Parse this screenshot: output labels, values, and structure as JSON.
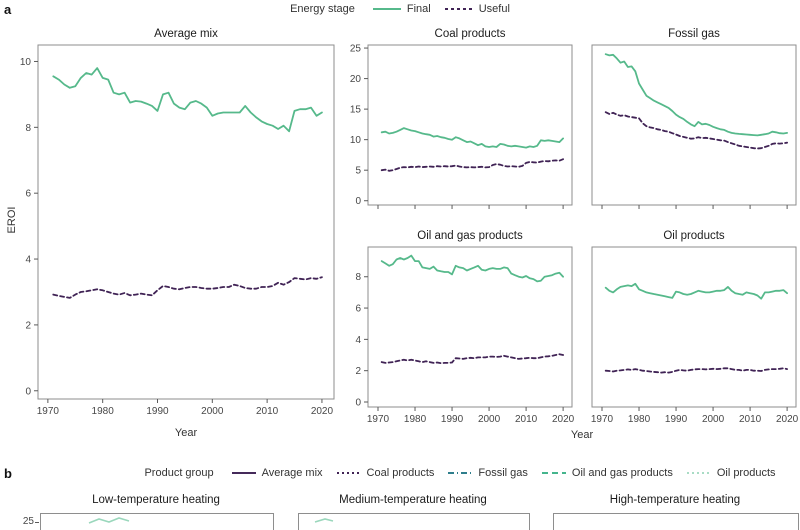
{
  "panel_a_label": "a",
  "panel_b_label": "b",
  "legend_energy_stage": {
    "title": "Energy stage",
    "items": [
      {
        "label": "Final",
        "color": "#56b98b",
        "dash": ""
      },
      {
        "label": "Useful",
        "color": "#402355",
        "dash": "3 3"
      }
    ]
  },
  "axes": {
    "x_label": "Year",
    "y_label": "EROI"
  },
  "years": [
    1971,
    1972,
    1973,
    1974,
    1975,
    1976,
    1977,
    1978,
    1979,
    1980,
    1981,
    1982,
    1983,
    1984,
    1985,
    1986,
    1987,
    1988,
    1989,
    1990,
    1991,
    1992,
    1993,
    1994,
    1995,
    1996,
    1997,
    1998,
    1999,
    2000,
    2001,
    2002,
    2003,
    2004,
    2005,
    2006,
    2007,
    2008,
    2009,
    2010,
    2011,
    2012,
    2013,
    2014,
    2015,
    2016,
    2017,
    2018,
    2019,
    2020
  ],
  "chart_data": [
    {
      "type": "line",
      "title": "Average mix",
      "xlim": [
        1968.2,
        2022.2
      ],
      "ylim": [
        -0.25,
        10.5
      ],
      "xticks": [
        1970,
        1980,
        1990,
        2000,
        2010,
        2020
      ],
      "yticks": [
        0,
        2,
        4,
        6,
        8,
        10
      ],
      "show_x_labels": true,
      "show_y_ticks": true,
      "series": [
        {
          "name": "Final",
          "color": "#56b98b",
          "dash": "",
          "values": [
            9.55,
            9.45,
            9.3,
            9.2,
            9.25,
            9.5,
            9.65,
            9.6,
            9.8,
            9.5,
            9.45,
            9.05,
            9.0,
            9.05,
            8.75,
            8.8,
            8.78,
            8.72,
            8.65,
            8.5,
            9.0,
            9.05,
            8.72,
            8.6,
            8.55,
            8.75,
            8.8,
            8.72,
            8.6,
            8.35,
            8.42,
            8.45,
            8.45,
            8.45,
            8.45,
            8.65,
            8.45,
            8.3,
            8.18,
            8.1,
            8.05,
            7.95,
            8.05,
            7.88,
            8.5,
            8.55,
            8.55,
            8.6,
            8.35,
            8.45
          ]
        },
        {
          "name": "Useful",
          "color": "#402355",
          "dash": "4 3",
          "values": [
            2.92,
            2.88,
            2.85,
            2.82,
            2.92,
            3.0,
            3.02,
            3.05,
            3.08,
            3.05,
            3.0,
            2.95,
            2.92,
            2.97,
            2.9,
            2.92,
            2.95,
            2.92,
            2.9,
            3.05,
            3.18,
            3.15,
            3.1,
            3.08,
            3.12,
            3.15,
            3.15,
            3.12,
            3.1,
            3.1,
            3.12,
            3.15,
            3.15,
            3.22,
            3.18,
            3.12,
            3.1,
            3.1,
            3.15,
            3.15,
            3.18,
            3.28,
            3.22,
            3.3,
            3.42,
            3.4,
            3.38,
            3.42,
            3.4,
            3.45
          ]
        }
      ]
    },
    {
      "type": "line",
      "title": "Coal products",
      "xlim": [
        1967.3,
        2022.4
      ],
      "ylim": [
        -0.7,
        25.5
      ],
      "xticks": [
        1970,
        1980,
        1990,
        2000,
        2010,
        2020
      ],
      "yticks": [
        0,
        5,
        10,
        15,
        20,
        25
      ],
      "show_x_labels": false,
      "show_y_ticks": true,
      "series": [
        {
          "name": "Final",
          "color": "#56b98b",
          "dash": "",
          "values": [
            11.2,
            11.3,
            11.0,
            11.1,
            11.3,
            11.6,
            11.9,
            11.7,
            11.5,
            11.4,
            11.2,
            11.0,
            10.9,
            10.8,
            10.5,
            10.6,
            10.4,
            10.3,
            10.1,
            10.0,
            10.4,
            10.2,
            9.9,
            9.6,
            9.7,
            9.4,
            9.1,
            9.3,
            8.9,
            8.8,
            8.9,
            8.8,
            9.3,
            9.2,
            9.0,
            8.9,
            9.0,
            8.9,
            8.8,
            8.7,
            8.9,
            8.8,
            9.0,
            9.9,
            9.8,
            9.9,
            9.8,
            9.7,
            9.6,
            10.2
          ]
        },
        {
          "name": "Useful",
          "color": "#402355",
          "dash": "4 3",
          "values": [
            5.0,
            5.1,
            4.9,
            5.0,
            5.2,
            5.4,
            5.5,
            5.45,
            5.55,
            5.5,
            5.6,
            5.5,
            5.55,
            5.6,
            5.55,
            5.65,
            5.6,
            5.65,
            5.6,
            5.65,
            5.75,
            5.6,
            5.5,
            5.45,
            5.5,
            5.45,
            5.5,
            5.55,
            5.45,
            5.5,
            5.85,
            6.0,
            5.9,
            5.7,
            5.6,
            5.65,
            5.6,
            5.55,
            5.7,
            6.2,
            6.35,
            6.3,
            6.25,
            6.4,
            6.5,
            6.45,
            6.55,
            6.6,
            6.55,
            6.8
          ]
        }
      ]
    },
    {
      "type": "line",
      "title": "Fossil gas",
      "xlim": [
        1967.3,
        2022.4
      ],
      "ylim": [
        -0.7,
        25.5
      ],
      "xticks": [
        1970,
        1980,
        1990,
        2000,
        2010,
        2020
      ],
      "yticks": [
        0,
        5,
        10,
        15,
        20,
        25
      ],
      "show_x_labels": false,
      "show_y_ticks": false,
      "series": [
        {
          "name": "Final",
          "color": "#56b98b",
          "dash": "",
          "values": [
            24.0,
            23.8,
            23.9,
            23.3,
            22.6,
            22.8,
            21.9,
            22.0,
            21.2,
            19.2,
            18.2,
            17.2,
            16.8,
            16.4,
            16.1,
            15.8,
            15.5,
            15.2,
            14.7,
            14.1,
            13.7,
            13.4,
            12.9,
            12.5,
            12.2,
            12.9,
            12.5,
            12.6,
            12.4,
            12.1,
            11.9,
            11.7,
            11.6,
            11.3,
            11.1,
            11.0,
            10.95,
            10.9,
            10.85,
            10.8,
            10.75,
            10.7,
            10.8,
            10.9,
            11.0,
            11.3,
            11.2,
            11.05,
            11.0,
            11.1
          ]
        },
        {
          "name": "Useful",
          "color": "#402355",
          "dash": "4 3",
          "values": [
            14.5,
            14.2,
            14.4,
            14.1,
            13.9,
            14.0,
            13.8,
            13.7,
            13.6,
            13.5,
            12.7,
            12.2,
            12.0,
            11.9,
            11.7,
            11.6,
            11.4,
            11.3,
            11.05,
            10.85,
            10.6,
            10.45,
            10.3,
            10.15,
            10.2,
            10.4,
            10.25,
            10.3,
            10.2,
            10.1,
            10.0,
            9.9,
            9.85,
            9.6,
            9.4,
            9.2,
            9.0,
            8.9,
            8.8,
            8.7,
            8.6,
            8.55,
            8.6,
            8.8,
            9.0,
            9.3,
            9.4,
            9.35,
            9.4,
            9.5
          ]
        }
      ]
    },
    {
      "type": "line",
      "title": "Oil and gas products",
      "xlim": [
        1967.3,
        2022.4
      ],
      "ylim": [
        -0.32,
        9.9
      ],
      "xticks": [
        1970,
        1980,
        1990,
        2000,
        2010,
        2020
      ],
      "yticks": [
        0,
        2,
        4,
        6,
        8
      ],
      "show_x_labels": true,
      "show_y_ticks": true,
      "series": [
        {
          "name": "Final",
          "color": "#56b98b",
          "dash": "",
          "values": [
            9.0,
            8.85,
            8.7,
            8.8,
            9.1,
            9.2,
            9.1,
            9.2,
            9.35,
            9.0,
            9.0,
            8.6,
            8.55,
            8.5,
            8.65,
            8.4,
            8.35,
            8.3,
            8.3,
            8.15,
            8.7,
            8.6,
            8.55,
            8.4,
            8.5,
            8.6,
            8.7,
            8.45,
            8.4,
            8.5,
            8.55,
            8.5,
            8.5,
            8.6,
            8.55,
            8.2,
            8.1,
            8.0,
            7.95,
            8.05,
            7.9,
            7.85,
            7.7,
            7.75,
            8.0,
            8.05,
            8.1,
            8.2,
            8.25,
            8.0
          ]
        },
        {
          "name": "Useful",
          "color": "#402355",
          "dash": "4 3",
          "values": [
            2.55,
            2.5,
            2.52,
            2.55,
            2.6,
            2.65,
            2.7,
            2.65,
            2.7,
            2.65,
            2.6,
            2.55,
            2.6,
            2.55,
            2.5,
            2.52,
            2.48,
            2.5,
            2.5,
            2.52,
            2.8,
            2.78,
            2.75,
            2.8,
            2.82,
            2.8,
            2.85,
            2.85,
            2.85,
            2.9,
            2.9,
            2.88,
            2.9,
            2.95,
            2.9,
            2.85,
            2.8,
            2.75,
            2.78,
            2.8,
            2.82,
            2.8,
            2.8,
            2.85,
            2.9,
            2.92,
            2.95,
            3.0,
            3.05,
            3.0
          ]
        }
      ]
    },
    {
      "type": "line",
      "title": "Oil products",
      "xlim": [
        1967.3,
        2022.4
      ],
      "ylim": [
        -0.32,
        9.9
      ],
      "xticks": [
        1970,
        1980,
        1990,
        2000,
        2010,
        2020
      ],
      "yticks": [
        0,
        2,
        4,
        6,
        8
      ],
      "show_x_labels": true,
      "show_y_ticks": false,
      "series": [
        {
          "name": "Final",
          "color": "#56b98b",
          "dash": "",
          "values": [
            7.3,
            7.1,
            7.0,
            7.2,
            7.35,
            7.4,
            7.45,
            7.4,
            7.55,
            7.2,
            7.1,
            7.0,
            6.95,
            6.9,
            6.85,
            6.8,
            6.75,
            6.7,
            6.65,
            7.05,
            7.0,
            6.9,
            6.85,
            6.9,
            7.0,
            7.1,
            7.05,
            7.0,
            7.0,
            7.05,
            7.1,
            7.1,
            7.15,
            7.35,
            7.1,
            6.95,
            6.9,
            6.85,
            7.0,
            6.95,
            6.9,
            6.8,
            6.6,
            7.0,
            7.0,
            7.05,
            7.1,
            7.1,
            7.15,
            6.95
          ]
        },
        {
          "name": "Useful",
          "color": "#402355",
          "dash": "4 3",
          "values": [
            2.0,
            1.98,
            1.95,
            2.0,
            2.02,
            2.05,
            2.08,
            2.05,
            2.1,
            2.05,
            2.0,
            1.98,
            1.95,
            1.92,
            1.9,
            1.88,
            1.9,
            1.88,
            1.92,
            2.0,
            2.05,
            2.02,
            2.0,
            2.05,
            2.08,
            2.1,
            2.1,
            2.08,
            2.1,
            2.12,
            2.1,
            2.12,
            2.15,
            2.15,
            2.1,
            2.05,
            2.05,
            2.0,
            2.05,
            2.05,
            2.0,
            2.0,
            1.98,
            2.05,
            2.08,
            2.1,
            2.1,
            2.12,
            2.15,
            2.1
          ]
        }
      ]
    }
  ],
  "panel_b": {
    "legend_title": "Product group",
    "legend_items": [
      {
        "label": "Average mix",
        "color": "#452a5a",
        "dash": ""
      },
      {
        "label": "Coal products",
        "color": "#402355",
        "dash": "2 3"
      },
      {
        "label": "Fossil gas",
        "color": "#2e7e8c",
        "dash": "6 3 1 3"
      },
      {
        "label": "Oil and gas products",
        "color": "#45b58d",
        "dash": "6 4"
      },
      {
        "label": "Oil products",
        "color": "#a9dcc5",
        "dash": "2 3"
      }
    ],
    "charts": [
      {
        "title": "Low-temperature heating"
      },
      {
        "title": "Medium-temperature heating"
      },
      {
        "title": "High-temperature heating"
      }
    ],
    "y_tick_label": "25"
  }
}
